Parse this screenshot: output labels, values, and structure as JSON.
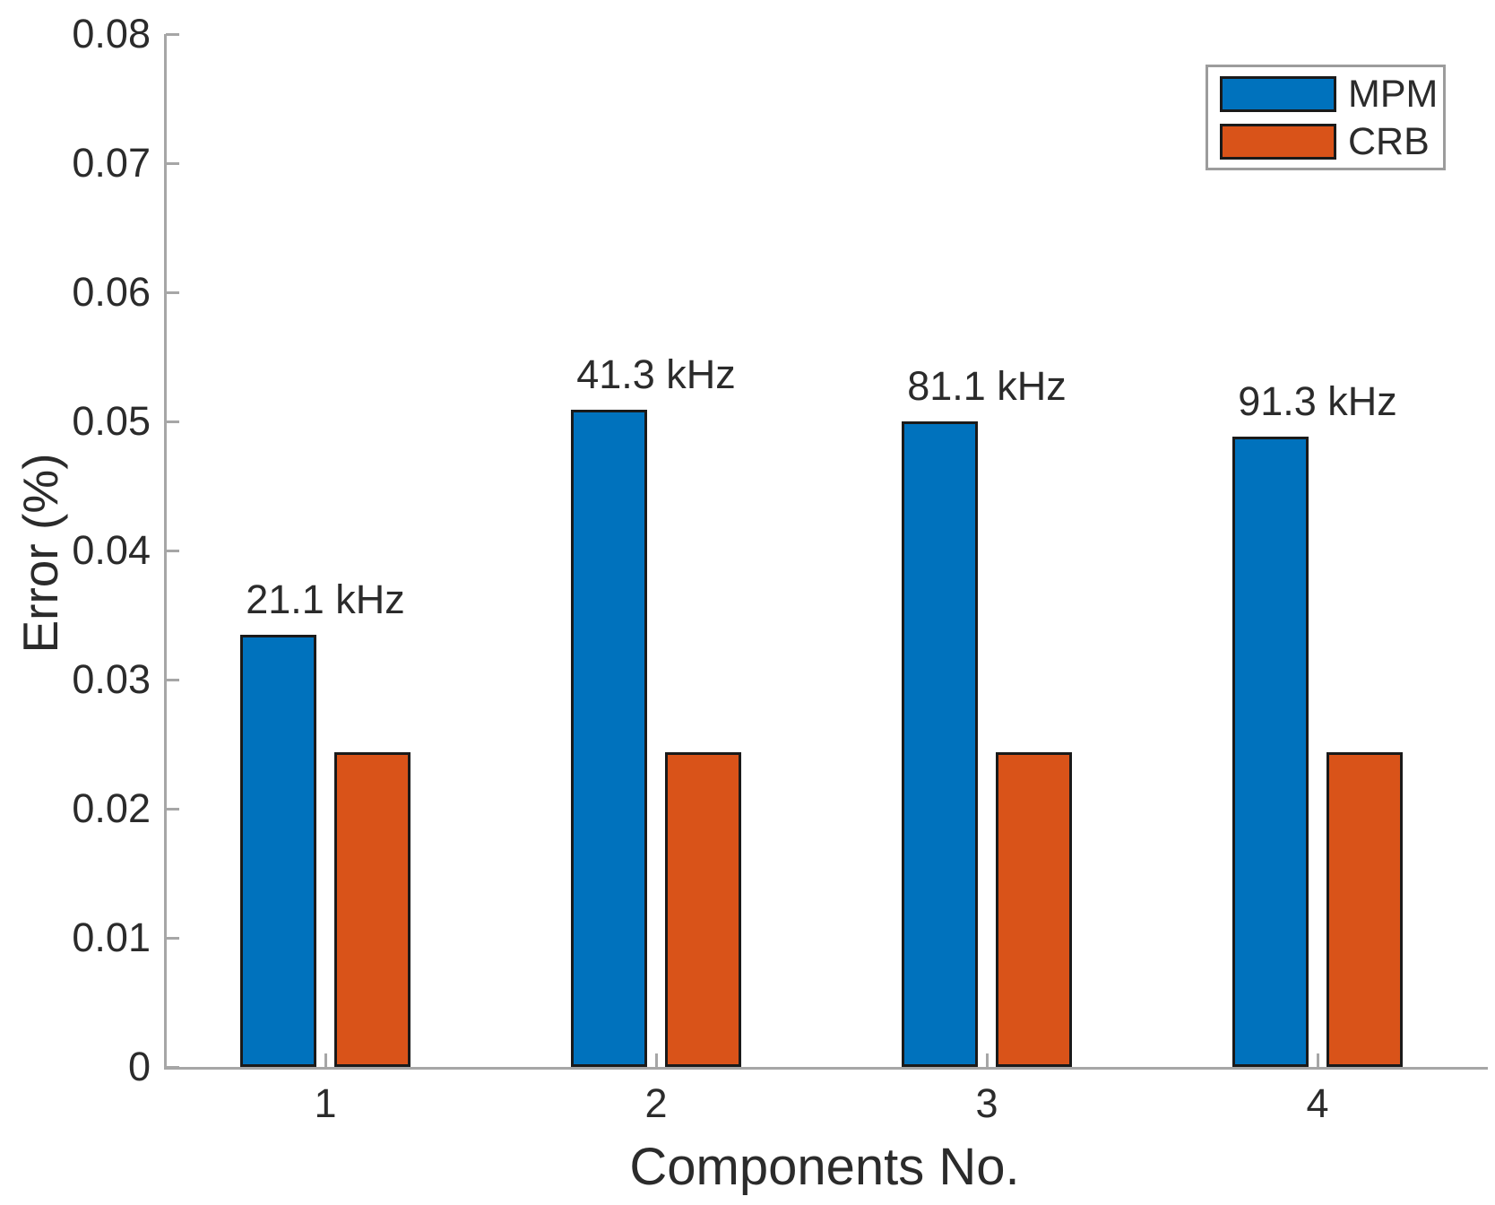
{
  "chart_data": {
    "type": "bar",
    "title": "",
    "xlabel": "Components No.",
    "ylabel": "Error (%)",
    "categories": [
      "1",
      "2",
      "3",
      "4"
    ],
    "series": [
      {
        "name": "MPM",
        "color": "#0072BD",
        "values": [
          0.0335,
          0.0509,
          0.05,
          0.0488
        ]
      },
      {
        "name": "CRB",
        "color": "#D95319",
        "values": [
          0.0244,
          0.0244,
          0.0244,
          0.0244
        ]
      }
    ],
    "bar_annotations": [
      "21.1 kHz",
      "41.3 kHz",
      "81.1 kHz",
      "91.3 kHz"
    ],
    "ylim": [
      0,
      0.08
    ],
    "ytick_values": [
      0,
      0.01,
      0.02,
      0.03,
      0.04,
      0.05,
      0.06,
      0.07,
      0.08
    ],
    "ytick_labels": [
      "0",
      "0.01",
      "0.02",
      "0.03",
      "0.04",
      "0.05",
      "0.06",
      "0.07",
      "0.08"
    ],
    "grid": false,
    "legend_position": "top-right",
    "axis_color": "#a6a6a6",
    "text_color": "#2b2b2b",
    "bar_edge_color": "#1a1a1a"
  }
}
